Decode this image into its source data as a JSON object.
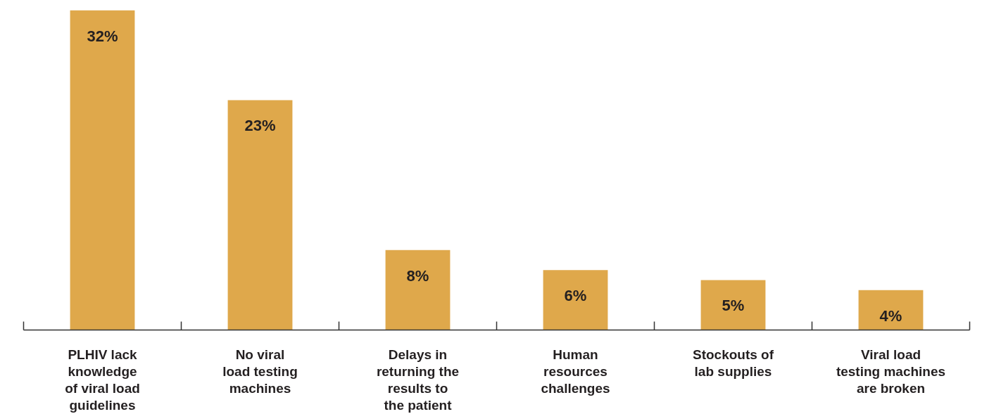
{
  "chart_data": {
    "type": "bar",
    "categories": [
      "PLHIV lack\nknowledge\nof viral load\nguidelines",
      "No viral\nload testing\nmachines",
      "Delays in\nreturning the\nresults to\nthe patient",
      "Human\nresources\nchallenges",
      "Stockouts of\nlab supplies",
      "Viral load\ntesting machines\nare broken"
    ],
    "values": [
      32,
      23,
      8,
      6,
      5,
      4
    ],
    "value_labels": [
      "32%",
      "23%",
      "8%",
      "6%",
      "5%",
      "4%"
    ],
    "color": "#dfa84b"
  }
}
